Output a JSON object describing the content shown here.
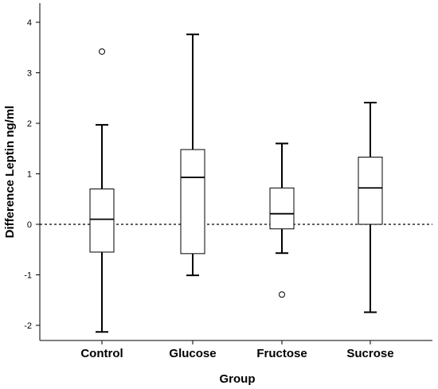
{
  "chart_data": {
    "type": "boxplot",
    "title": "",
    "xlabel": "Group",
    "ylabel": "Difference Leptin ng/ml",
    "ylim": [
      -2.3,
      4.3
    ],
    "yticks": [
      -2,
      -1,
      0,
      1,
      2,
      3,
      4
    ],
    "reference_line": {
      "y": 0,
      "style": "dotted"
    },
    "grid": false,
    "colors": {
      "box_fill": "#ffffff",
      "box_stroke": "#000000",
      "axis": "#000000"
    },
    "categories": [
      "Control",
      "Glucose",
      "Fructose",
      "Sucrose"
    ],
    "boxes": [
      {
        "category": "Control",
        "whisker_low": -2.13,
        "q1": -0.55,
        "median": 0.1,
        "q3": 0.7,
        "whisker_high": 1.97,
        "outliers": [
          3.42
        ]
      },
      {
        "category": "Glucose",
        "whisker_low": -1.01,
        "q1": -0.58,
        "median": 0.93,
        "q3": 1.48,
        "whisker_high": 3.76,
        "outliers": []
      },
      {
        "category": "Fructose",
        "whisker_low": -0.57,
        "q1": -0.09,
        "median": 0.21,
        "q3": 0.72,
        "whisker_high": 1.6,
        "outliers": [
          -1.39
        ]
      },
      {
        "category": "Sucrose",
        "whisker_low": -1.74,
        "q1": 0.0,
        "median": 0.72,
        "q3": 1.33,
        "whisker_high": 2.41,
        "outliers": []
      }
    ]
  }
}
